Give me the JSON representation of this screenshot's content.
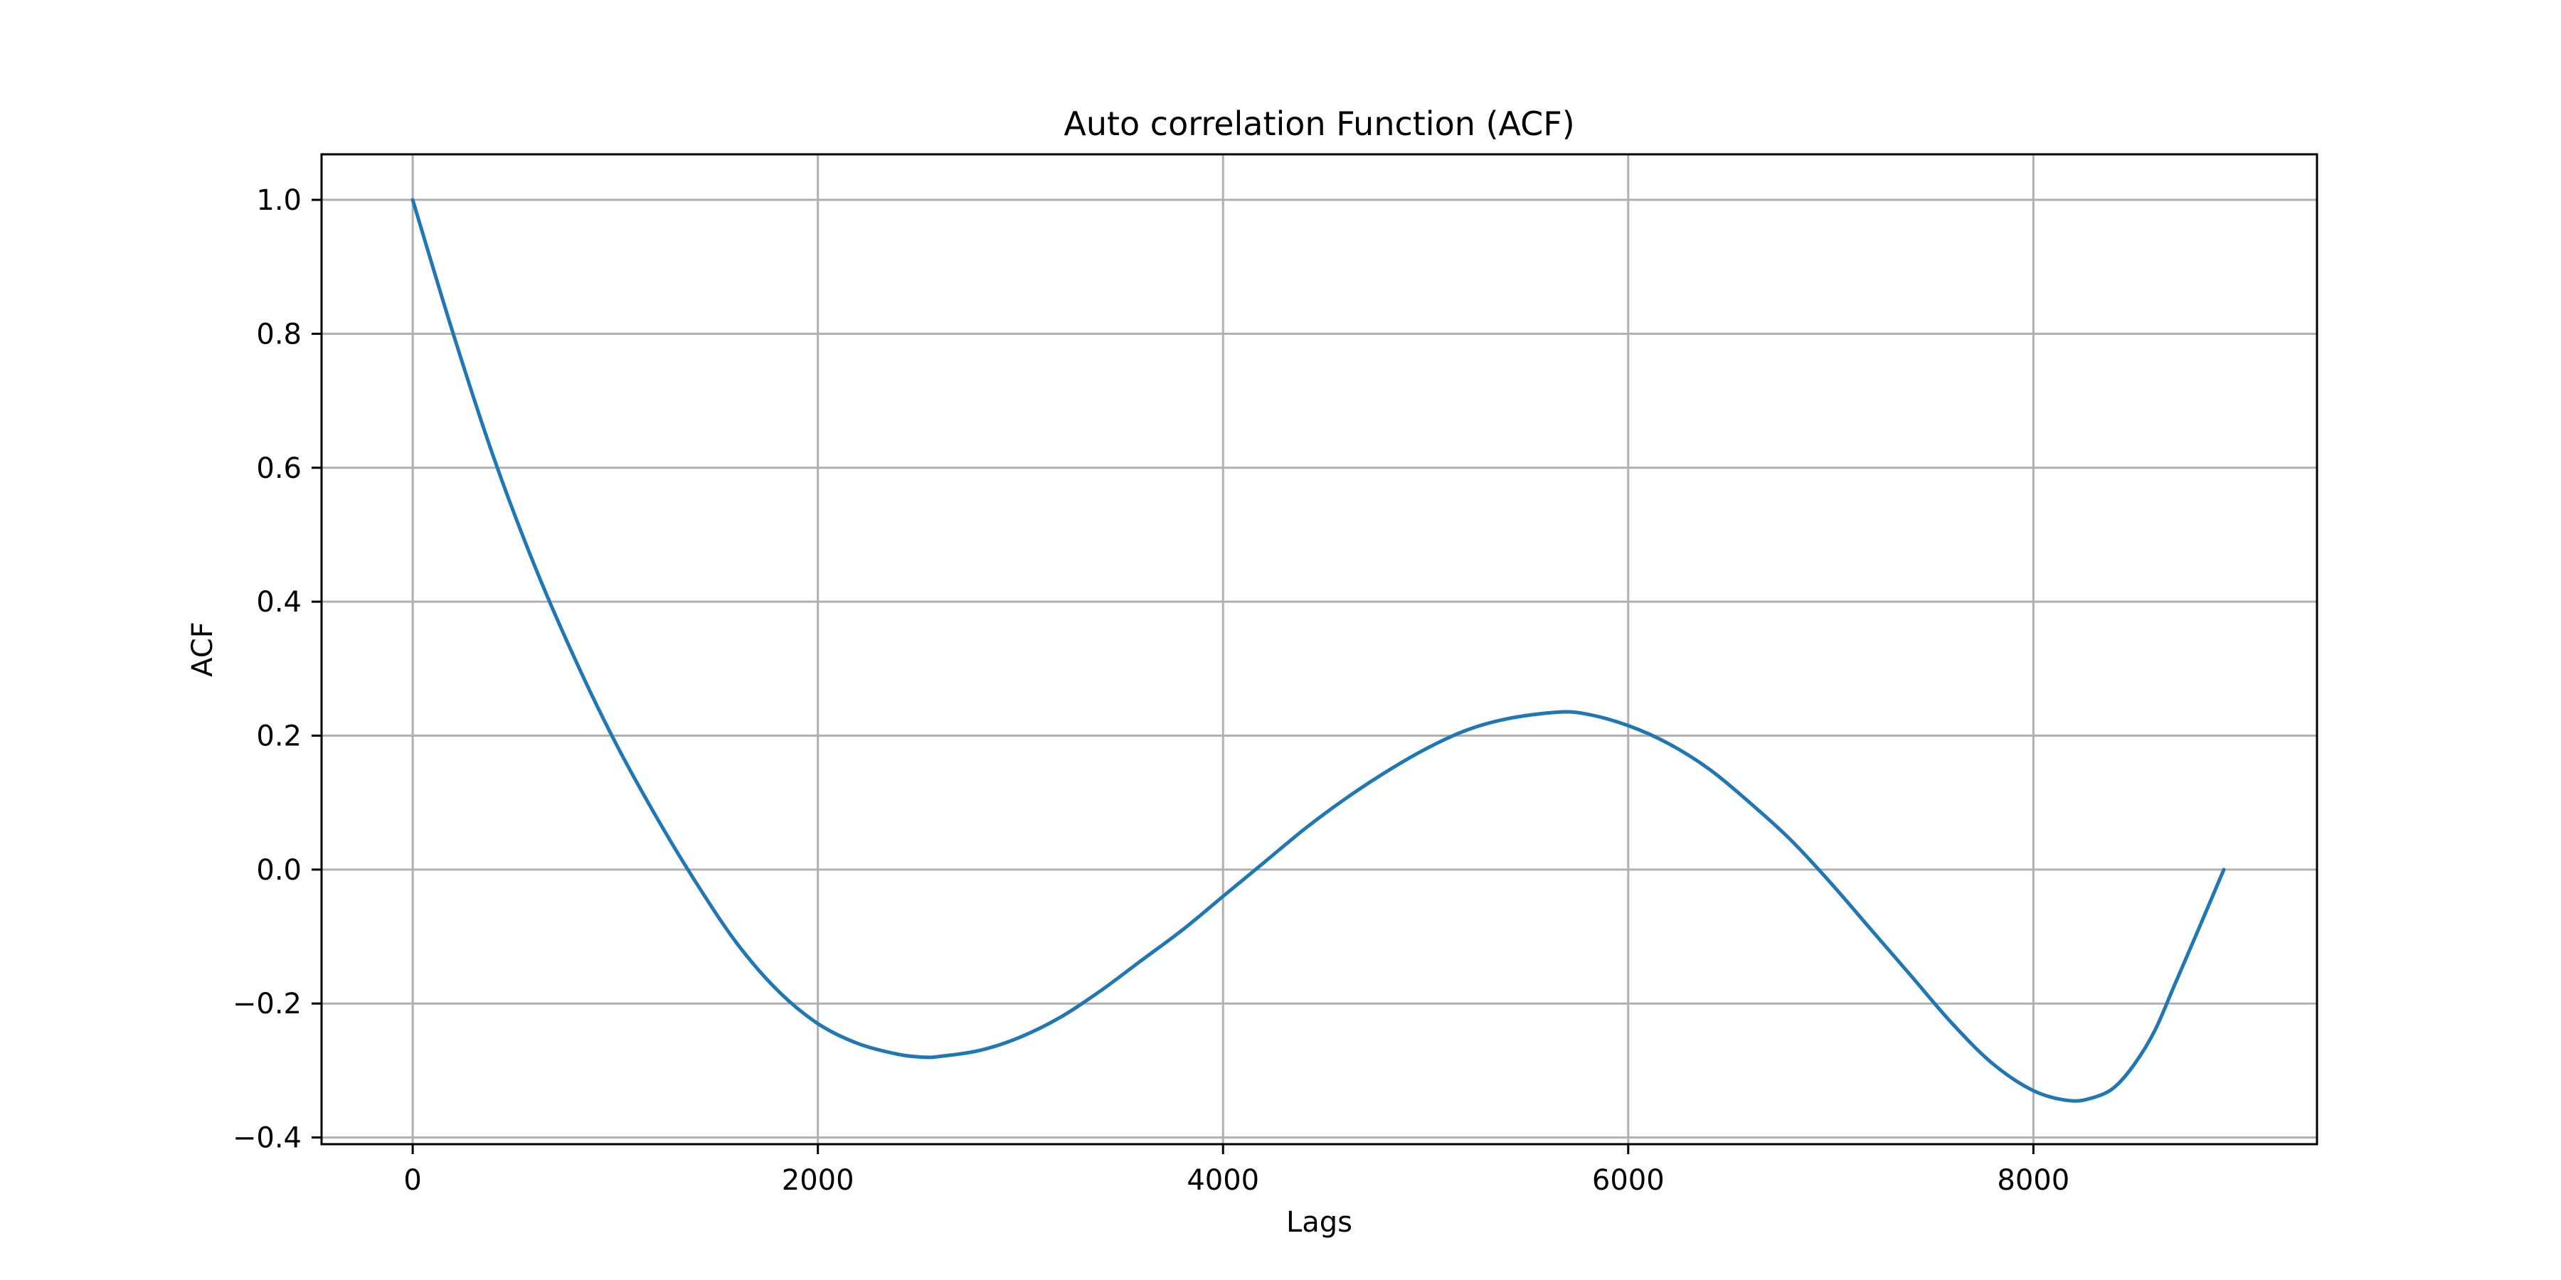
{
  "chart_data": {
    "type": "line",
    "title": "Auto correlation Function (ACF)",
    "xlabel": "Lags",
    "ylabel": "ACF",
    "xlim": [
      -450,
      9400
    ],
    "ylim": [
      -0.41,
      1.068
    ],
    "grid": true,
    "x_ticks": [
      0,
      2000,
      4000,
      6000,
      8000
    ],
    "y_ticks": [
      1.0,
      0.8,
      0.6,
      0.4,
      0.2,
      0.0,
      -0.2,
      -0.4
    ],
    "x_tick_labels": [
      "0",
      "2000",
      "4000",
      "6000",
      "8000"
    ],
    "y_tick_labels": [
      "1.0",
      "0.8",
      "0.6",
      "0.4",
      "0.2",
      "0.0",
      "−0.2",
      "−0.4"
    ],
    "series": [
      {
        "color": "#1f77b4",
        "x": [
          0,
          200,
          400,
          600,
          800,
          1000,
          1200,
          1400,
          1600,
          1800,
          2000,
          2200,
          2400,
          2520,
          2600,
          2800,
          3000,
          3200,
          3400,
          3600,
          3800,
          4000,
          4200,
          4400,
          4600,
          4800,
          5000,
          5200,
          5400,
          5650,
          5800,
          6000,
          6200,
          6400,
          6600,
          6800,
          7000,
          7200,
          7400,
          7600,
          7800,
          8000,
          8180,
          8300,
          8400,
          8500,
          8600,
          8700,
          8800,
          8940
        ],
        "y": [
          1.0,
          0.8,
          0.615,
          0.455,
          0.315,
          0.19,
          0.08,
          -0.02,
          -0.11,
          -0.18,
          -0.23,
          -0.26,
          -0.276,
          -0.28,
          -0.279,
          -0.27,
          -0.25,
          -0.22,
          -0.18,
          -0.135,
          -0.09,
          -0.04,
          0.01,
          0.06,
          0.105,
          0.145,
          0.18,
          0.208,
          0.225,
          0.235,
          0.232,
          0.215,
          0.188,
          0.15,
          0.1,
          0.045,
          -0.02,
          -0.09,
          -0.16,
          -0.23,
          -0.29,
          -0.33,
          -0.345,
          -0.34,
          -0.325,
          -0.29,
          -0.24,
          -0.17,
          -0.1,
          0.0
        ]
      }
    ]
  }
}
